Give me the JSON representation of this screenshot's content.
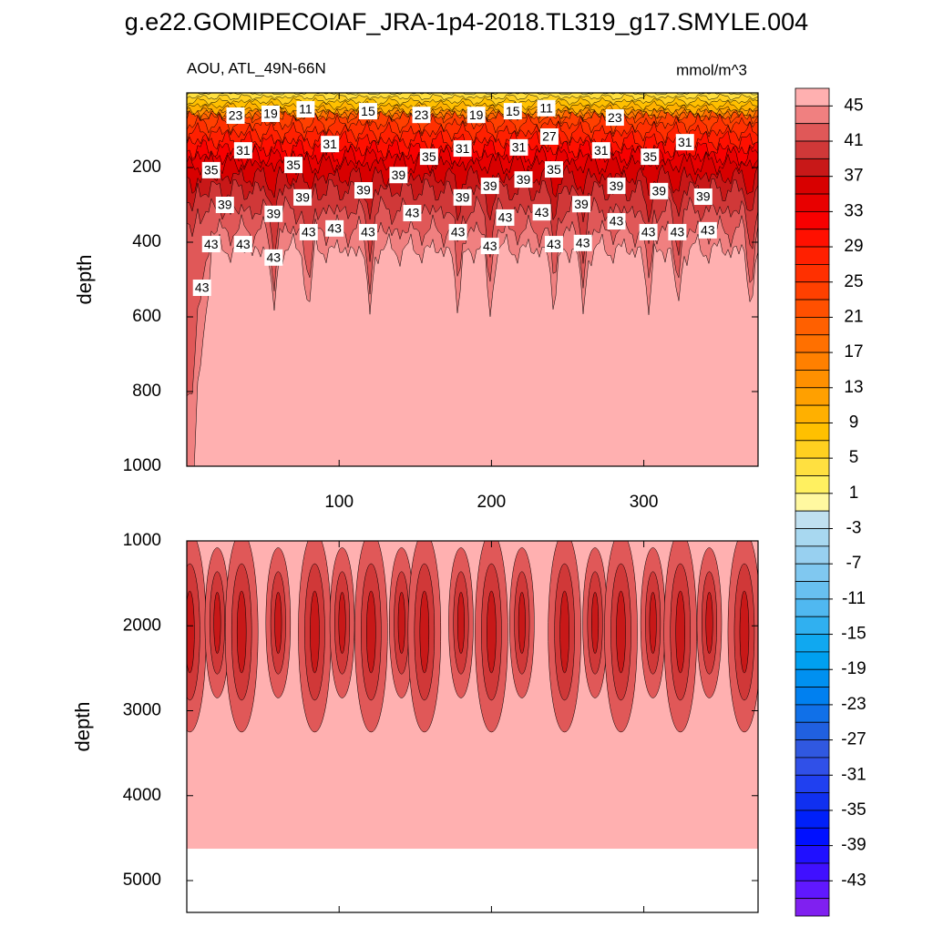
{
  "chart_data": [
    {
      "type": "contour",
      "title": "g.e22.GOMIPECOIAF_JRA-1p4-2018.TL319_g17.SMYLE.004",
      "subtitle_left": "AOU, ATL_49N-66N",
      "subtitle_right": "mmol/m^3",
      "ylabel": "depth",
      "xlim": [
        0,
        375
      ],
      "xticks": [
        100,
        200,
        300
      ],
      "ylim": [
        0,
        1000
      ],
      "yticks": [
        200,
        400,
        600,
        800,
        1000
      ],
      "y_inverted": true,
      "contour_labels": [
        {
          "x": 32,
          "depth": 61,
          "value": 23
        },
        {
          "x": 55,
          "depth": 56,
          "value": 19
        },
        {
          "x": 78,
          "depth": 44,
          "value": 11
        },
        {
          "x": 119,
          "depth": 49,
          "value": 15
        },
        {
          "x": 154,
          "depth": 59,
          "value": 23
        },
        {
          "x": 190,
          "depth": 59,
          "value": 19
        },
        {
          "x": 214,
          "depth": 49,
          "value": 15
        },
        {
          "x": 236,
          "depth": 41,
          "value": 11
        },
        {
          "x": 281,
          "depth": 66,
          "value": 23
        },
        {
          "x": 37,
          "depth": 154,
          "value": 31
        },
        {
          "x": 94,
          "depth": 137,
          "value": 31
        },
        {
          "x": 238,
          "depth": 117,
          "value": 27
        },
        {
          "x": 218,
          "depth": 146,
          "value": 31
        },
        {
          "x": 181,
          "depth": 149,
          "value": 31
        },
        {
          "x": 272,
          "depth": 154,
          "value": 31
        },
        {
          "x": 327,
          "depth": 132,
          "value": 31
        },
        {
          "x": 16,
          "depth": 207,
          "value": 35
        },
        {
          "x": 70,
          "depth": 193,
          "value": 35
        },
        {
          "x": 159,
          "depth": 171,
          "value": 35
        },
        {
          "x": 241,
          "depth": 205,
          "value": 35
        },
        {
          "x": 304,
          "depth": 171,
          "value": 35
        },
        {
          "x": 139,
          "depth": 220,
          "value": 39
        },
        {
          "x": 116,
          "depth": 261,
          "value": 39
        },
        {
          "x": 25,
          "depth": 300,
          "value": 39
        },
        {
          "x": 76,
          "depth": 280,
          "value": 39
        },
        {
          "x": 199,
          "depth": 249,
          "value": 39
        },
        {
          "x": 221,
          "depth": 232,
          "value": 39
        },
        {
          "x": 181,
          "depth": 280,
          "value": 39
        },
        {
          "x": 282,
          "depth": 249,
          "value": 39
        },
        {
          "x": 310,
          "depth": 263,
          "value": 39
        },
        {
          "x": 339,
          "depth": 278,
          "value": 39
        },
        {
          "x": 259,
          "depth": 298,
          "value": 39
        },
        {
          "x": 57,
          "depth": 324,
          "value": 39
        },
        {
          "x": 16,
          "depth": 405,
          "value": 43
        },
        {
          "x": 37,
          "depth": 405,
          "value": 43
        },
        {
          "x": 80,
          "depth": 373,
          "value": 43
        },
        {
          "x": 97,
          "depth": 363,
          "value": 43
        },
        {
          "x": 119,
          "depth": 373,
          "value": 43
        },
        {
          "x": 148,
          "depth": 322,
          "value": 43
        },
        {
          "x": 178,
          "depth": 373,
          "value": 43
        },
        {
          "x": 209,
          "depth": 334,
          "value": 43
        },
        {
          "x": 233,
          "depth": 320,
          "value": 43
        },
        {
          "x": 199,
          "depth": 410,
          "value": 43
        },
        {
          "x": 241,
          "depth": 405,
          "value": 43
        },
        {
          "x": 260,
          "depth": 402,
          "value": 43
        },
        {
          "x": 282,
          "depth": 344,
          "value": 43
        },
        {
          "x": 303,
          "depth": 373,
          "value": 43
        },
        {
          "x": 322,
          "depth": 373,
          "value": 43
        },
        {
          "x": 342,
          "depth": 368,
          "value": 43
        },
        {
          "x": 57,
          "depth": 441,
          "value": 43
        },
        {
          "x": 10,
          "depth": 522,
          "value": 43
        }
      ],
      "colorbar": {
        "levels": [
          45,
          43,
          41,
          39,
          37,
          35,
          33,
          31,
          29,
          27,
          25,
          23,
          21,
          19,
          17,
          15,
          13,
          11,
          9,
          7,
          5,
          3,
          1,
          -1,
          -3,
          -5,
          -7,
          -9,
          -11,
          -13,
          -15,
          -17,
          -19,
          -21,
          -23,
          -25,
          -27,
          -29,
          -31,
          -33,
          -35,
          -37,
          -39,
          -41,
          -43,
          -45
        ],
        "ticks": [
          45,
          41,
          37,
          33,
          29,
          25,
          21,
          17,
          13,
          9,
          5,
          1,
          -3,
          -7,
          -11,
          -15,
          -19,
          -23,
          -27,
          -31,
          -35,
          -39,
          -43
        ],
        "colors": [
          "#ffb0b0",
          "#f08080",
          "#e05858",
          "#d03838",
          "#c81818",
          "#d80000",
          "#e80000",
          "#f80000",
          "#ff1000",
          "#ff2000",
          "#ff3000",
          "#ff4000",
          "#ff5000",
          "#ff6000",
          "#ff7000",
          "#ff8000",
          "#ff9000",
          "#ffa000",
          "#ffb000",
          "#ffc000",
          "#ffd020",
          "#ffe040",
          "#fff060",
          "#fff8a0",
          "#c0e0f0",
          "#a8d8f0",
          "#98d0f0",
          "#80c8f0",
          "#68c0f0",
          "#50b8f0",
          "#30b0f0",
          "#10a8f0",
          "#00a0f0",
          "#0090f0",
          "#0080f0",
          "#1070e8",
          "#2060e0",
          "#3058e0",
          "#3050e8",
          "#2040f0",
          "#1030f0",
          "#0020f8",
          "#0010ff",
          "#2010ff",
          "#4010ff",
          "#6018ff",
          "#8020f0"
        ]
      }
    },
    {
      "type": "contour",
      "ylabel": "depth",
      "xlim": [
        0,
        375
      ],
      "ylim": [
        1000,
        5375
      ],
      "yticks": [
        1000,
        2000,
        3000,
        4000,
        5000
      ],
      "y_inverted": true,
      "fill_depth": 4625
    }
  ]
}
